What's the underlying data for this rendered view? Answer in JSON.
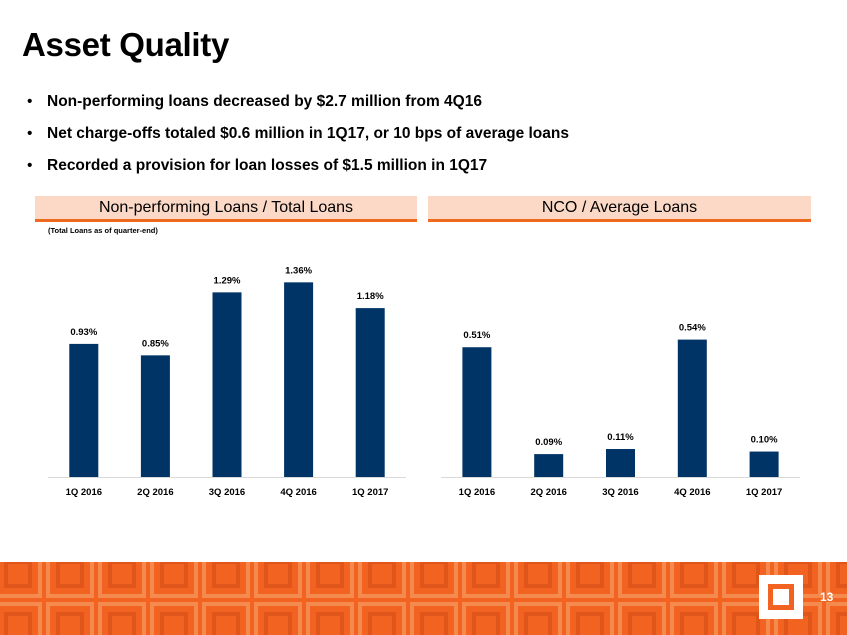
{
  "slide": {
    "title": "Asset Quality",
    "bullets": [
      "Non-performing loans decreased by $2.7 million from 4Q16",
      "Net charge-offs totaled $0.6 million in 1Q17, or 10 bps of average loans",
      "Recorded a provision for loan losses of $1.5 million in 1Q17"
    ],
    "bullet_symbol": "•",
    "page_number": "13",
    "colors": {
      "bar": "#003366",
      "accent": "#f26322",
      "header_bg": "#fbd9c6"
    }
  },
  "chart_data": [
    {
      "type": "bar",
      "title": "Non-performing Loans / Total Loans",
      "subtitle": "(Total Loans as of quarter-end)",
      "categories": [
        "1Q 2016",
        "2Q 2016",
        "3Q 2016",
        "4Q 2016",
        "1Q 2017"
      ],
      "values": [
        0.93,
        0.85,
        1.29,
        1.36,
        1.18
      ],
      "data_labels": [
        "0.93%",
        "0.85%",
        "1.29%",
        "1.36%",
        "1.18%"
      ],
      "ylim": [
        0,
        1.6
      ],
      "unit": "%",
      "grid": false
    },
    {
      "type": "bar",
      "title": "NCO / Average Loans",
      "categories": [
        "1Q 2016",
        "2Q 2016",
        "3Q 2016",
        "4Q 2016",
        "1Q 2017"
      ],
      "values": [
        0.51,
        0.09,
        0.11,
        0.54,
        0.1
      ],
      "data_labels": [
        "0.51%",
        "0.09%",
        "0.11%",
        "0.54%",
        "0.10%"
      ],
      "ylim": [
        0,
        0.9
      ],
      "unit": "%",
      "grid": false
    }
  ]
}
